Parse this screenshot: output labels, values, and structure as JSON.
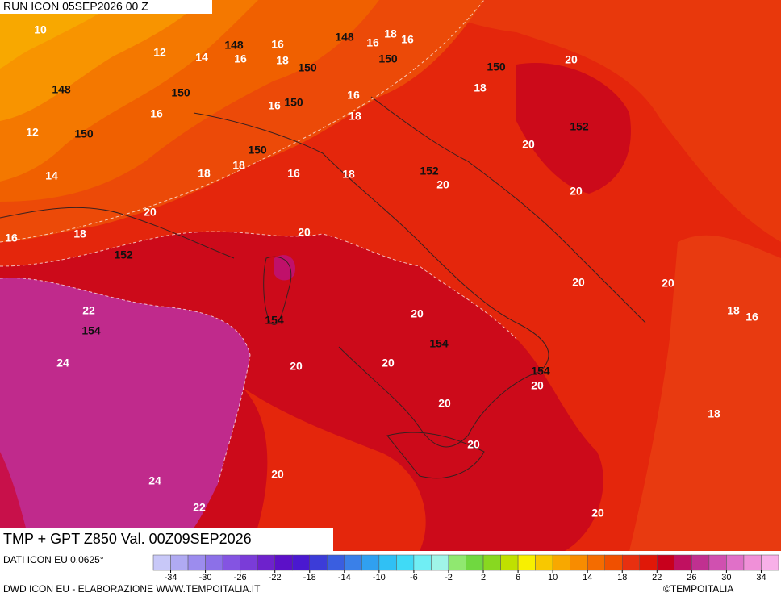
{
  "header": {
    "run": "RUN ICON 05SEP2026 00 Z"
  },
  "map": {
    "temperature_labels": [
      10,
      12,
      14,
      16,
      16,
      18,
      16,
      18,
      16,
      16,
      12,
      14,
      16,
      16,
      18,
      18,
      20,
      20,
      20,
      18,
      18,
      16,
      18,
      20,
      20,
      18,
      16,
      20,
      20,
      20,
      18,
      16,
      22,
      24,
      20,
      20,
      20,
      20,
      20,
      18,
      20,
      20,
      24,
      22,
      20
    ],
    "height_labels": [
      148,
      148,
      150,
      150,
      150,
      148,
      150,
      150,
      150,
      152,
      150,
      152,
      152,
      154,
      154,
      154,
      154
    ]
  },
  "footer": {
    "title": "TMP + GPT Z850 Val. 00Z09SEP2026",
    "source": "DATI ICON EU 0.0625°",
    "credit": "DWD ICON EU - ELABORAZIONE WWW.TEMPOITALIA.IT",
    "copyright": "©TEMPOITALIA"
  },
  "colorbar": {
    "range": [
      -36,
      36
    ],
    "ticks": [
      -34,
      -30,
      -26,
      -22,
      -18,
      -14,
      -10,
      -6,
      -2,
      2,
      6,
      10,
      14,
      18,
      22,
      26,
      30,
      34
    ],
    "colors": [
      "#c8c8f8",
      "#b0aaf2",
      "#9c8cee",
      "#8c70e8",
      "#8454e2",
      "#7a3cd8",
      "#6e22cc",
      "#5c10c8",
      "#4a18d0",
      "#3c3cd8",
      "#3a5ee0",
      "#3a80e8",
      "#30a0f0",
      "#30c0f4",
      "#40daf6",
      "#70eef4",
      "#a0f4e8",
      "#90e870",
      "#70d840",
      "#88d820",
      "#c0e000",
      "#f8f000",
      "#f8c800",
      "#f8a800",
      "#f88c00",
      "#f46c00",
      "#f05000",
      "#e83010",
      "#e01808",
      "#c8001c",
      "#c01060",
      "#c03090",
      "#d050b0",
      "#e070c8",
      "#f090d8",
      "#f8b0e8"
    ]
  }
}
